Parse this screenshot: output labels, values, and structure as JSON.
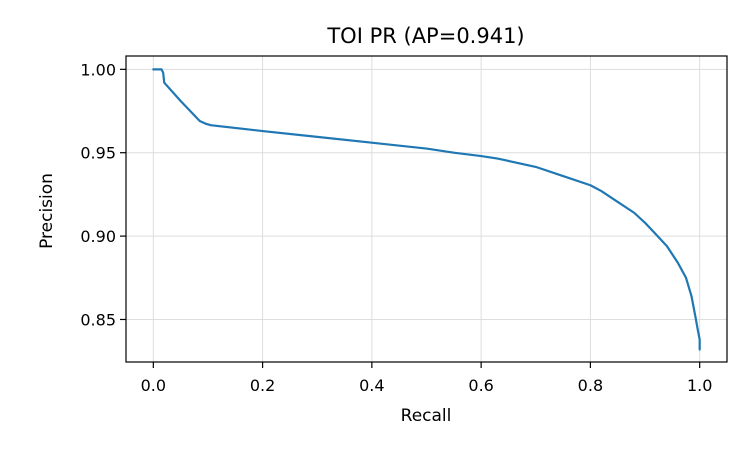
{
  "chart_data": {
    "type": "line",
    "title": "TOI PR (AP=0.941)",
    "xlabel": "Recall",
    "ylabel": "Precision",
    "xlim": [
      -0.05,
      1.05
    ],
    "ylim": [
      0.8245,
      1.008
    ],
    "grid": true,
    "x_ticks": [
      0.0,
      0.2,
      0.4,
      0.6,
      0.8,
      1.0
    ],
    "x_tick_labels": [
      "0.0",
      "0.2",
      "0.4",
      "0.6",
      "0.8",
      "1.0"
    ],
    "y_ticks": [
      0.85,
      0.9,
      0.95,
      1.0
    ],
    "y_tick_labels": [
      "0.85",
      "0.90",
      "0.95",
      "1.00"
    ],
    "series": [
      {
        "color": "#1f77b4",
        "x": [
          0.0,
          0.015,
          0.018,
          0.02,
          0.05,
          0.085,
          0.095,
          0.105,
          0.2,
          0.3,
          0.4,
          0.5,
          0.55,
          0.6,
          0.63,
          0.7,
          0.75,
          0.8,
          0.82,
          0.85,
          0.88,
          0.9,
          0.92,
          0.94,
          0.96,
          0.975,
          0.985,
          0.992,
          0.997,
          1.0,
          1.0
        ],
        "y": [
          1.0,
          1.0,
          0.998,
          0.992,
          0.981,
          0.969,
          0.9675,
          0.9665,
          0.963,
          0.9595,
          0.956,
          0.9525,
          0.95,
          0.948,
          0.9465,
          0.9415,
          0.936,
          0.9305,
          0.927,
          0.9205,
          0.914,
          0.908,
          0.901,
          0.894,
          0.884,
          0.875,
          0.864,
          0.852,
          0.843,
          0.838,
          0.832
        ]
      }
    ]
  }
}
